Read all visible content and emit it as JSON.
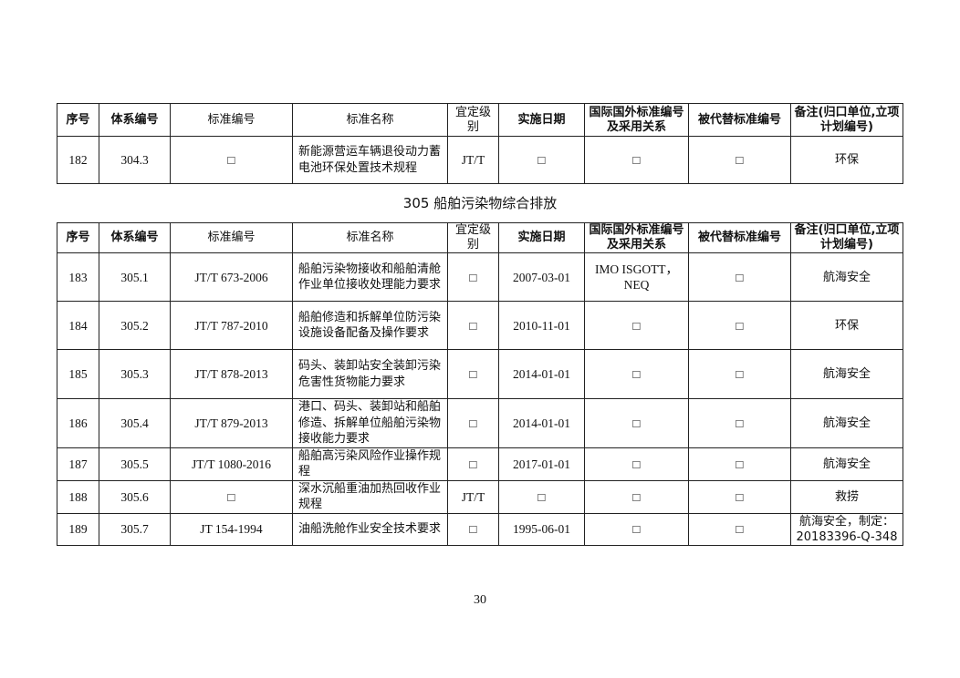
{
  "headers": [
    "序号",
    "体系编号",
    "标准编号",
    "标准名称",
    "宜定级别",
    "实施日期",
    "国际国外标准编号及采用关系",
    "被代替标准编号",
    "备注(归口单位,立项计划编号)"
  ],
  "table1": {
    "rows": [
      [
        "182",
        "304.3",
        "□",
        "新能源营运车辆退役动力蓄电池环保处置技术规程",
        "JT/T",
        "□",
        "□",
        "□",
        "环保"
      ]
    ]
  },
  "section_title": "305  船舶污染物综合排放",
  "table2": {
    "rows": [
      [
        "183",
        "305.1",
        "JT/T 673-2006",
        "船舶污染物接收和船舶清舱作业单位接收处理能力要求",
        "□",
        "2007-03-01",
        "IMO ISGOTT，NEQ",
        "□",
        "航海安全"
      ],
      [
        "184",
        "305.2",
        "JT/T 787-2010",
        "船舶修造和拆解单位防污染设施设备配备及操作要求",
        "□",
        "2010-11-01",
        "□",
        "□",
        "环保"
      ],
      [
        "185",
        "305.3",
        "JT/T 878-2013",
        "码头、装卸站安全装卸污染危害性货物能力要求",
        "□",
        "2014-01-01",
        "□",
        "□",
        "航海安全"
      ],
      [
        "186",
        "305.4",
        "JT/T 879-2013",
        "港口、码头、装卸站和船舶修造、拆解单位船舶污染物接收能力要求",
        "□",
        "2014-01-01",
        "□",
        "□",
        "航海安全"
      ],
      [
        "187",
        "305.5",
        "JT/T 1080-2016",
        "船舶高污染风险作业操作规程",
        "□",
        "2017-01-01",
        "□",
        "□",
        "航海安全"
      ],
      [
        "188",
        "305.6",
        "□",
        "深水沉船重油加热回收作业规程",
        "JT/T",
        "□",
        "□",
        "□",
        "救捞"
      ],
      [
        "189",
        "305.7",
        "JT 154-1994",
        "油船洗舱作业安全技术要求",
        "□",
        "1995-06-01",
        "□",
        "□",
        "航海安全，制定：20183396-Q-348"
      ]
    ]
  },
  "page_number": "30"
}
